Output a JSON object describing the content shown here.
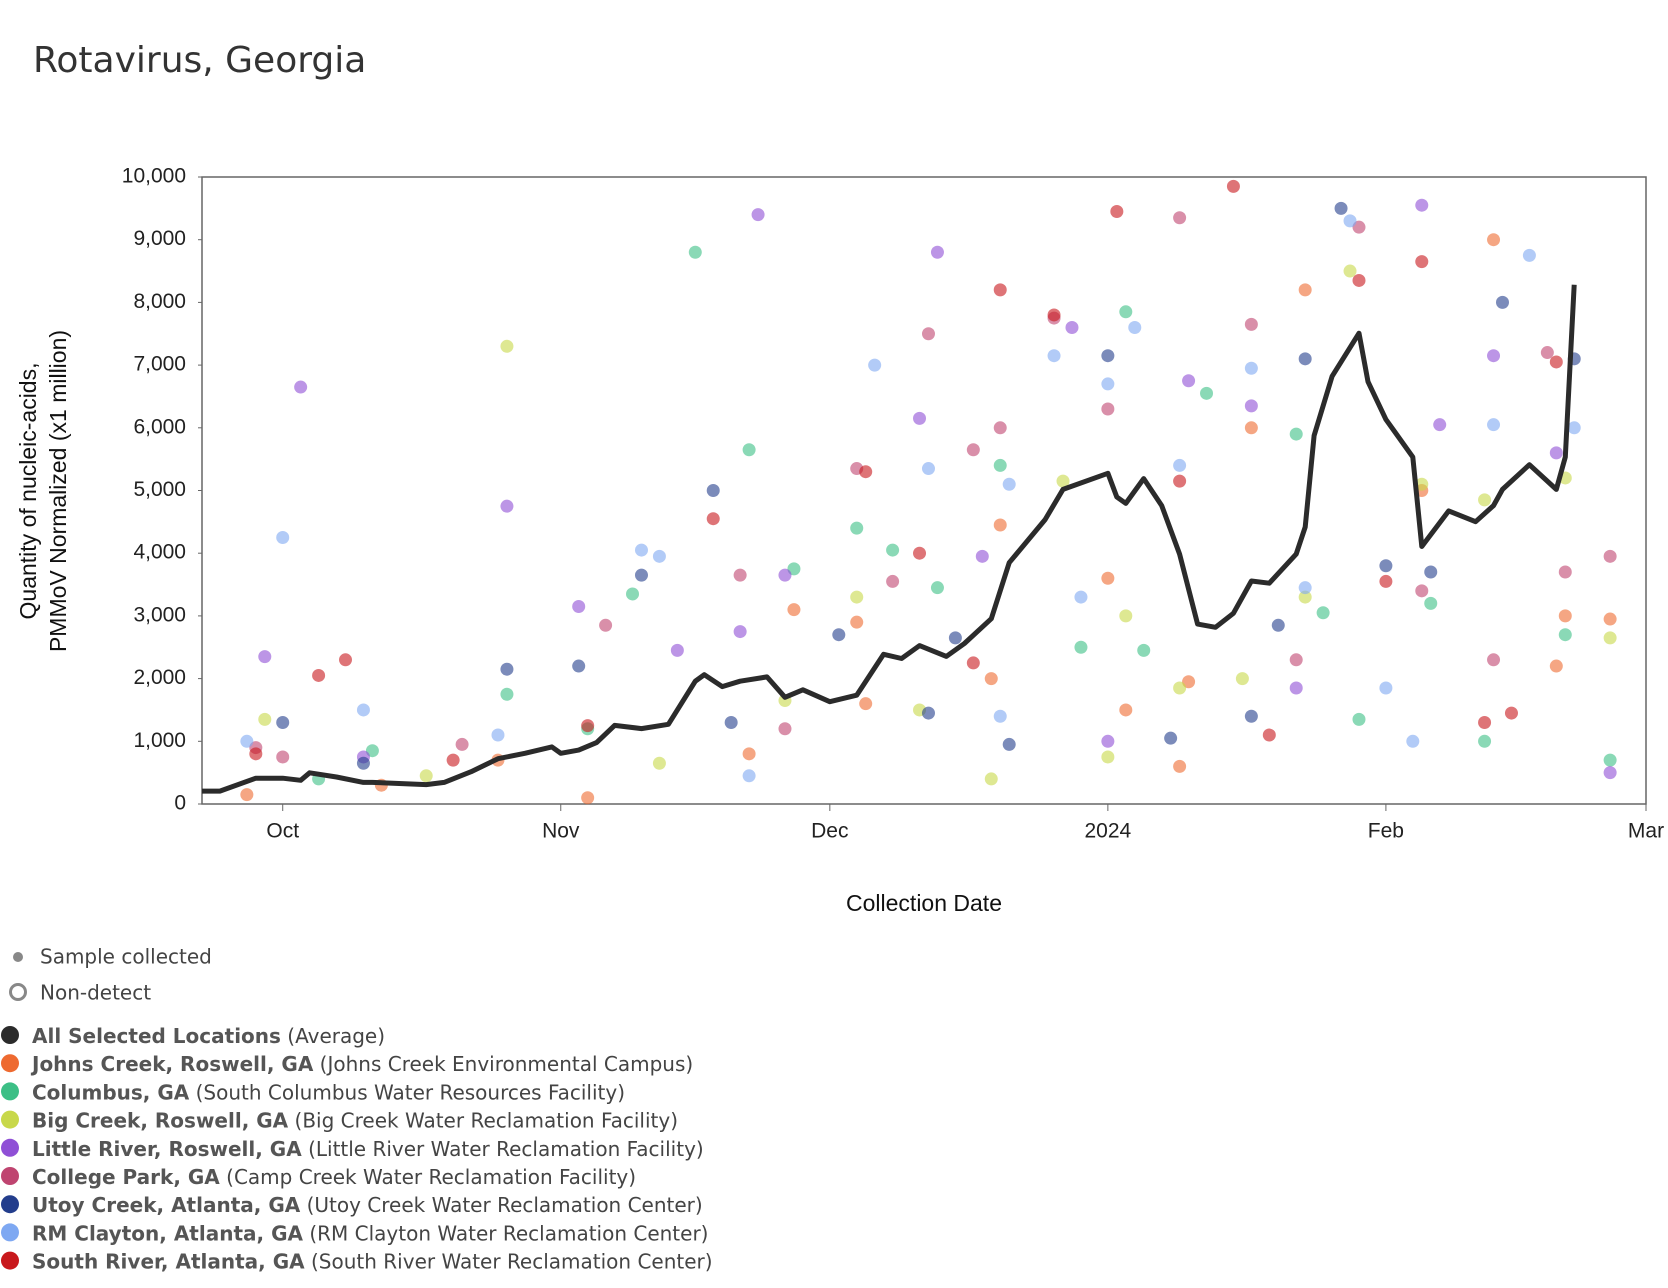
{
  "chart_data": {
    "type": "scatter",
    "title": "Rotavirus, Georgia",
    "x_label": "Collection Date",
    "y_label": [
      "Quantity of nucleic-acids,",
      "PMMoV Normalized (x1 million)"
    ],
    "xlim": [
      "2023-09-22",
      "2024-03-01"
    ],
    "xticks": [
      {
        "value": "2023-10-01",
        "label": "Oct"
      },
      {
        "value": "2023-11-01",
        "label": "Nov"
      },
      {
        "value": "2023-12-01",
        "label": "Dec"
      },
      {
        "value": "2024-01-01",
        "label": "2024"
      },
      {
        "value": "2024-02-01",
        "label": "Feb"
      },
      {
        "value": "2024-03-01",
        "label": "Mar"
      }
    ],
    "ylim": [
      0,
      10000
    ],
    "yticks": [
      0,
      {
        "value": 1000,
        "label": "1,000"
      },
      {
        "value": 2000,
        "label": "2,000"
      },
      {
        "value": 3000,
        "label": "3,000"
      },
      {
        "value": 4000,
        "label": "4,000"
      },
      {
        "value": 5000,
        "label": "5,000"
      },
      {
        "value": 6000,
        "label": "6,000"
      },
      {
        "value": 7000,
        "label": "7,000"
      },
      {
        "value": 8000,
        "label": "8,000"
      },
      {
        "value": 9000,
        "label": "9,000"
      },
      {
        "value": 10000,
        "label": "10,000"
      }
    ],
    "marker_key": [
      "Sample collected",
      "Non-detect"
    ],
    "average": {
      "name": "All Selected Locations",
      "facility": "(Average)",
      "color": "#2b2b2b",
      "x": [
        "2023-09-22",
        "2023-09-24",
        "2023-09-28",
        "2023-10-01",
        "2023-10-03",
        "2023-10-04",
        "2023-10-07",
        "2023-10-10",
        "2023-10-11",
        "2023-10-17",
        "2023-10-19",
        "2023-10-22",
        "2023-10-25",
        "2023-10-28",
        "2023-10-31",
        "2023-11-01",
        "2023-11-03",
        "2023-11-05",
        "2023-11-07",
        "2023-11-10",
        "2023-11-13",
        "2023-11-16",
        "2023-11-17",
        "2023-11-19",
        "2023-11-21",
        "2023-11-24",
        "2023-11-26",
        "2023-11-28",
        "2023-12-01",
        "2023-12-04",
        "2023-12-07",
        "2023-12-09",
        "2023-12-11",
        "2023-12-14",
        "2023-12-16",
        "2023-12-19",
        "2023-12-21",
        "2023-12-25",
        "2023-12-27",
        "2024-01-01",
        "2024-01-02",
        "2024-01-03",
        "2024-01-05",
        "2024-01-07",
        "2024-01-09",
        "2024-01-11",
        "2024-01-13",
        "2024-01-15",
        "2024-01-17",
        "2024-01-19",
        "2024-01-22",
        "2024-01-23",
        "2024-01-24",
        "2024-01-26",
        "2024-01-29",
        "2024-01-30",
        "2024-02-01",
        "2024-02-04",
        "2024-02-05",
        "2024-02-08",
        "2024-02-11",
        "2024-02-13",
        "2024-02-14",
        "2024-02-17",
        "2024-02-20",
        "2024-02-21",
        "2024-02-22"
      ],
      "values": [
        206,
        206,
        412,
        412,
        378,
        498,
        430,
        344,
        344,
        309,
        344,
        515,
        722,
        808,
        911,
        808,
        859,
        979,
        1254,
        1203,
        1271,
        1959,
        2062,
        1873,
        1959,
        2027,
        1701,
        1821,
        1632,
        1735,
        2388,
        2320,
        2526,
        2354,
        2560,
        2955,
        3849,
        4536,
        5017,
        5275,
        4897,
        4794,
        5189,
        4759,
        3986,
        2869,
        2818,
        3041,
        3557,
        3522,
        3986,
        4416,
        5876,
        6821,
        7509,
        6735,
        6134,
        5533,
        4107,
        4674,
        4502,
        4759,
        5017,
        5412,
        5017,
        5533,
        8282
      ]
    },
    "series": [
      {
        "name": "Johns Creek, Roswell, GA",
        "facility": "(Johns Creek Environmental Campus)",
        "color": "#ee6a30",
        "x": [
          "2023-09-27",
          "2023-10-12",
          "2023-10-25",
          "2023-11-04",
          "2023-11-22",
          "2023-11-27",
          "2023-12-04",
          "2023-12-05",
          "2023-12-19",
          "2023-12-20",
          "2024-01-01",
          "2024-01-03",
          "2024-01-09",
          "2024-01-10",
          "2024-01-17",
          "2024-01-23",
          "2024-02-05",
          "2024-02-13",
          "2024-02-20",
          "2024-02-21",
          "2024-02-26"
        ],
        "values": [
          150,
          300,
          700,
          100,
          800,
          3100,
          2900,
          1600,
          2000,
          4450,
          3600,
          1500,
          600,
          1950,
          6000,
          8200,
          5000,
          9000,
          2200,
          3000,
          2950
        ]
      },
      {
        "name": "Columbus, GA",
        "facility": "(South Columbus Water Resources Facility)",
        "color": "#3cbf86",
        "x": [
          "2023-10-05",
          "2023-10-11",
          "2023-10-26",
          "2023-11-04",
          "2023-11-09",
          "2023-11-16",
          "2023-11-22",
          "2023-11-27",
          "2023-12-04",
          "2023-12-08",
          "2023-12-13",
          "2023-12-20",
          "2023-12-29",
          "2024-01-03",
          "2024-01-05",
          "2024-01-12",
          "2024-01-22",
          "2024-01-25",
          "2024-01-29",
          "2024-02-06",
          "2024-02-12",
          "2024-02-21",
          "2024-02-26"
        ],
        "values": [
          400,
          850,
          1750,
          1200,
          3350,
          8800,
          5650,
          3750,
          4400,
          4050,
          3450,
          5400,
          2500,
          7850,
          2450,
          6550,
          5900,
          3050,
          1350,
          3200,
          1000,
          2700,
          700
        ]
      },
      {
        "name": "Big Creek, Roswell, GA",
        "facility": "(Big Creek Water Reclamation Facility)",
        "color": "#c8d84a",
        "x": [
          "2023-09-29",
          "2023-10-17",
          "2023-10-26",
          "2023-11-12",
          "2023-11-26",
          "2023-12-04",
          "2023-12-11",
          "2023-12-19",
          "2023-12-27",
          "2024-01-01",
          "2024-01-03",
          "2024-01-09",
          "2024-01-16",
          "2024-01-23",
          "2024-01-28",
          "2024-02-05",
          "2024-02-12",
          "2024-02-21",
          "2024-02-26"
        ],
        "values": [
          1350,
          450,
          7300,
          650,
          1650,
          3300,
          1500,
          400,
          5150,
          750,
          3000,
          1850,
          2000,
          3300,
          8500,
          5100,
          4850,
          5200,
          2650
        ]
      },
      {
        "name": "Little River, Roswell, GA",
        "facility": "(Little River Water Reclamation Facility)",
        "color": "#8f4fd6",
        "x": [
          "2023-09-29",
          "2023-10-03",
          "2023-10-10",
          "2023-10-26",
          "2023-11-03",
          "2023-11-14",
          "2023-11-21",
          "2023-11-23",
          "2023-11-26",
          "2023-12-11",
          "2023-12-13",
          "2023-12-18",
          "2023-12-28",
          "2024-01-01",
          "2024-01-10",
          "2024-01-17",
          "2024-01-22",
          "2024-02-05",
          "2024-02-07",
          "2024-02-13",
          "2024-02-20",
          "2024-02-26"
        ],
        "values": [
          2350,
          6650,
          750,
          4750,
          3150,
          2450,
          2750,
          9400,
          3650,
          6150,
          8800,
          3950,
          7600,
          1000,
          6750,
          6350,
          1850,
          9550,
          6050,
          7150,
          5600,
          500
        ]
      },
      {
        "name": "College Park, GA",
        "facility": "(Camp Creek Water Reclamation Facility)",
        "color": "#bf4470",
        "x": [
          "2023-09-28",
          "2023-10-01",
          "2023-10-21",
          "2023-11-06",
          "2023-11-21",
          "2023-11-26",
          "2023-12-04",
          "2023-12-08",
          "2023-12-12",
          "2023-12-17",
          "2023-12-20",
          "2023-12-26",
          "2024-01-01",
          "2024-01-09",
          "2024-01-17",
          "2024-01-22",
          "2024-01-29",
          "2024-02-05",
          "2024-02-13",
          "2024-02-19",
          "2024-02-21",
          "2024-02-26"
        ],
        "values": [
          900,
          750,
          950,
          2850,
          3650,
          1200,
          5350,
          3550,
          7500,
          5650,
          6000,
          7750,
          6300,
          9350,
          7650,
          2300,
          9200,
          3400,
          2300,
          7200,
          3700,
          3950
        ]
      },
      {
        "name": "Utoy Creek, Atlanta, GA",
        "facility": "(Utoy Creek Water Reclamation Center)",
        "color": "#233d8c",
        "x": [
          "2023-10-01",
          "2023-10-10",
          "2023-10-26",
          "2023-11-03",
          "2023-11-10",
          "2023-11-18",
          "2023-11-20",
          "2023-12-02",
          "2023-12-12",
          "2023-12-15",
          "2023-12-21",
          "2024-01-01",
          "2024-01-08",
          "2024-01-17",
          "2024-01-20",
          "2024-01-23",
          "2024-01-27",
          "2024-02-01",
          "2024-02-06",
          "2024-02-14",
          "2024-02-22"
        ],
        "values": [
          1300,
          650,
          2150,
          2200,
          3650,
          5000,
          1300,
          2700,
          1450,
          2650,
          950,
          7150,
          1050,
          1400,
          2850,
          7100,
          9500,
          3800,
          3700,
          8000,
          7100
        ]
      },
      {
        "name": "RM Clayton, Atlanta, GA",
        "facility": "(RM Clayton Water Reclamation Center)",
        "color": "#7ea8f2",
        "x": [
          "2023-09-27",
          "2023-10-01",
          "2023-10-10",
          "2023-10-25",
          "2023-11-10",
          "2023-11-12",
          "2023-11-22",
          "2023-12-06",
          "2023-12-12",
          "2023-12-20",
          "2023-12-21",
          "2023-12-26",
          "2023-12-29",
          "2024-01-01",
          "2024-01-04",
          "2024-01-09",
          "2024-01-17",
          "2024-01-23",
          "2024-01-28",
          "2024-02-01",
          "2024-02-04",
          "2024-02-13",
          "2024-02-17",
          "2024-02-22"
        ],
        "values": [
          1000,
          4250,
          1500,
          1100,
          4050,
          3950,
          450,
          7000,
          5350,
          1400,
          5100,
          7150,
          3300,
          6700,
          7600,
          5400,
          6950,
          3450,
          9300,
          1850,
          1000,
          6050,
          8750,
          6000
        ]
      },
      {
        "name": "South River, Atlanta, GA",
        "facility": "(South River Water Reclamation Center)",
        "color": "#c8181c",
        "x": [
          "2023-09-28",
          "2023-10-05",
          "2023-10-08",
          "2023-10-20",
          "2023-11-04",
          "2023-11-18",
          "2023-12-05",
          "2023-12-11",
          "2023-12-17",
          "2023-12-20",
          "2023-12-26",
          "2024-01-02",
          "2024-01-09",
          "2024-01-15",
          "2024-01-19",
          "2024-01-29",
          "2024-02-01",
          "2024-02-05",
          "2024-02-12",
          "2024-02-15",
          "2024-02-20"
        ],
        "values": [
          800,
          2050,
          2300,
          700,
          1250,
          4550,
          5300,
          4000,
          2250,
          8200,
          7800,
          9450,
          5150,
          9850,
          1100,
          8350,
          3550,
          8650,
          1300,
          1450,
          7050
        ]
      }
    ]
  }
}
